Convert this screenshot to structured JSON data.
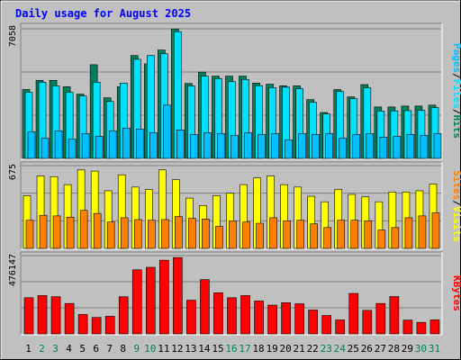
{
  "title": "Daily usage for August 2025",
  "colors": {
    "title": "#0000ff",
    "hits": "#00805c",
    "files": "#00e0ff",
    "pages": "#00c0ff",
    "visits": "#ffff00",
    "sites": "#ff8000",
    "kbytes": "#ff0000",
    "weekend_label": "#00805c",
    "weekday_label": "#000000",
    "background": "#c0c0c0",
    "panel": "#c0c0c0"
  },
  "legend": {
    "top": [
      "Pages",
      "Files",
      "Hits"
    ],
    "middle": [
      "Sites",
      "Visits"
    ],
    "bottom": [
      "KBytes"
    ],
    "separator": "/"
  },
  "chart_data": {
    "type": "bar",
    "days": [
      "1",
      "2",
      "3",
      "4",
      "5",
      "6",
      "7",
      "8",
      "9",
      "10",
      "11",
      "12",
      "13",
      "14",
      "15",
      "16",
      "17",
      "18",
      "19",
      "20",
      "21",
      "22",
      "23",
      "24",
      "25",
      "26",
      "27",
      "28",
      "29",
      "30",
      "31"
    ],
    "weekend_days": [
      "2",
      "3",
      "9",
      "10",
      "16",
      "17",
      "23",
      "24",
      "30",
      "31"
    ],
    "panels": [
      {
        "id": "hits-files-pages",
        "ymax_label": "7058",
        "ymax": 7058,
        "series": [
          {
            "name": "Hits",
            "values": [
              3750,
              4250,
              4250,
              3900,
              3500,
              5100,
              3300,
              3900,
              5600,
              5150,
              5900,
              7050,
              4080,
              4700,
              4480,
              4480,
              4480,
              4100,
              4040,
              3950,
              3950,
              3200,
              2500,
              3750,
              3350,
              4020,
              2800,
              2800,
              2850,
              2850,
              2900
            ]
          },
          {
            "name": "Files",
            "values": [
              3600,
              4150,
              3950,
              3600,
              3400,
              4150,
              3100,
              4100,
              5400,
              5600,
              5700,
              6900,
              3950,
              4480,
              4350,
              4180,
              4300,
              3960,
              3850,
              3880,
              3800,
              3050,
              2420,
              3640,
              3250,
              3850,
              2580,
              2590,
              2600,
              2620,
              2770
            ]
          },
          {
            "name": "Pages",
            "values": [
              1450,
              1100,
              1500,
              1050,
              1350,
              1200,
              1500,
              1650,
              1600,
              1400,
              2900,
              1550,
              1300,
              1400,
              1350,
              1250,
              1400,
              1300,
              1350,
              1000,
              1350,
              1300,
              1350,
              1100,
              1300,
              1350,
              1150,
              1200,
              1300,
              1250,
              1350
            ]
          }
        ]
      },
      {
        "id": "visits-sites",
        "ymax_label": "675",
        "ymax": 675,
        "series": [
          {
            "name": "Visits",
            "values": [
              430,
              590,
              585,
              520,
              640,
              630,
              470,
              600,
              500,
              480,
              640,
              560,
              410,
              350,
              430,
              450,
              520,
              575,
              590,
              520,
              500,
              425,
              380,
              480,
              440,
              420,
              380,
              460,
              460,
              470,
              525
            ]
          },
          {
            "name": "Sites",
            "values": [
              230,
              270,
              265,
              255,
              310,
              285,
              215,
              250,
              235,
              230,
              235,
              260,
              245,
              240,
              180,
              225,
              215,
              205,
              250,
              225,
              230,
              200,
              170,
              230,
              230,
              225,
              150,
              170,
              250,
              265,
              290
            ]
          }
        ]
      },
      {
        "id": "kbytes",
        "ymax_label": "476147",
        "ymax": 476147,
        "series": [
          {
            "name": "KBytes",
            "values": [
              220000,
              233000,
              226000,
              185000,
              118000,
              100000,
              107000,
              226000,
              390000,
              405000,
              448000,
              464000,
              205000,
              330000,
              250000,
              220000,
              233000,
              200000,
              175000,
              190000,
              183000,
              145000,
              112000,
              85000,
              246000,
              143000,
              185000,
              227000,
              84000,
              70000,
              85000
            ]
          }
        ]
      }
    ]
  }
}
